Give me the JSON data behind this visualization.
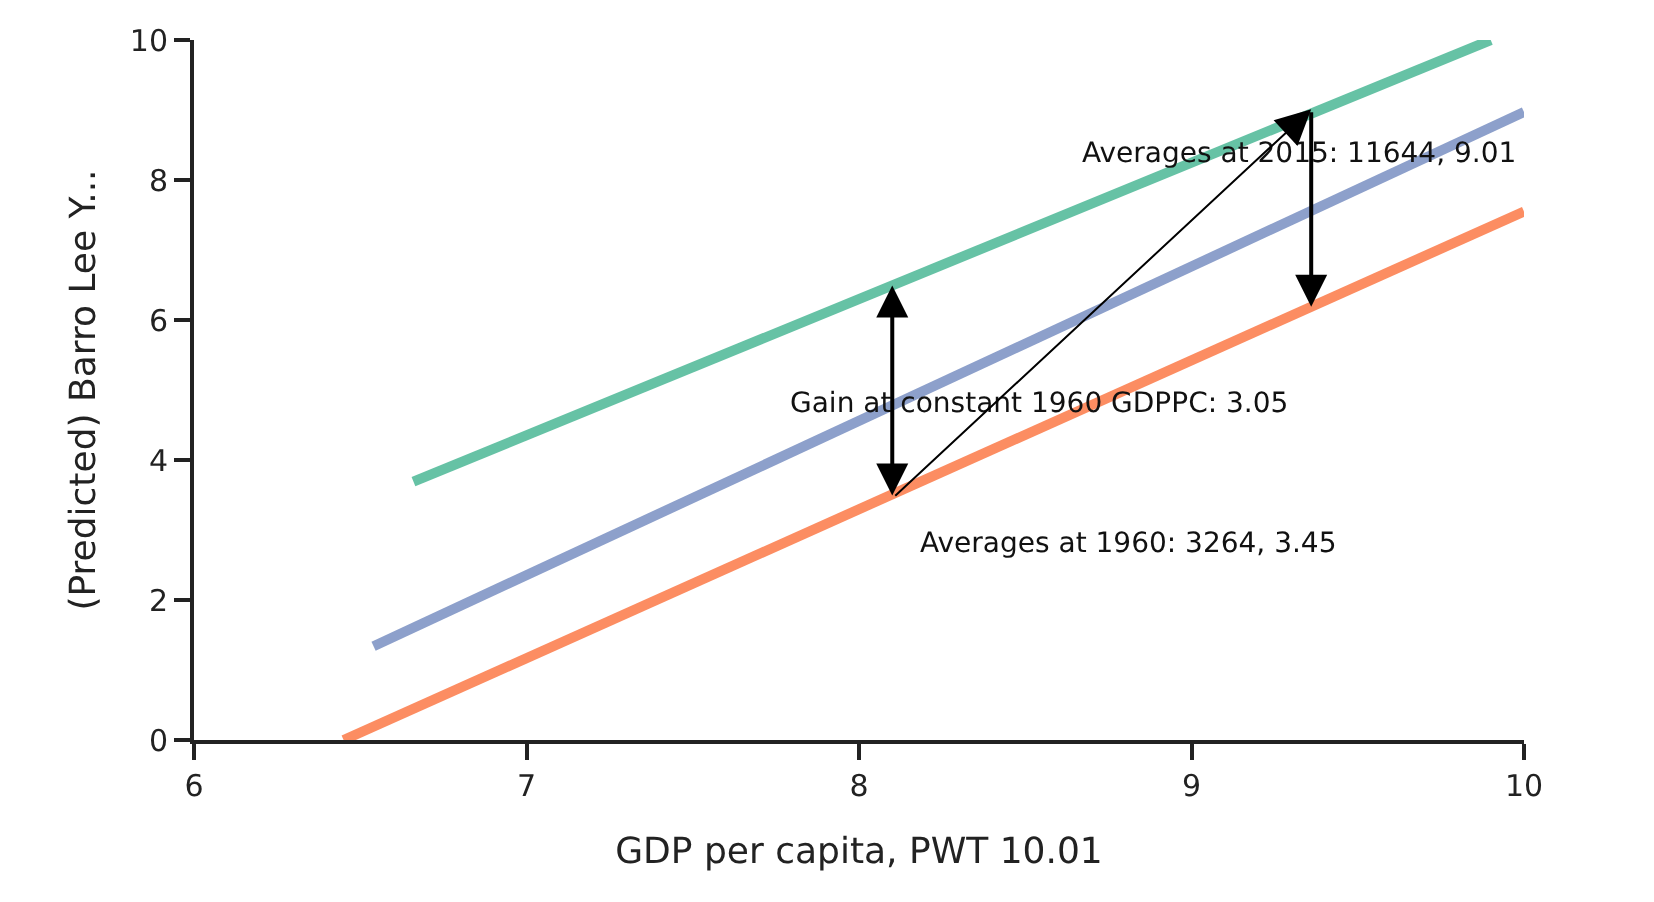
{
  "chart_data": {
    "type": "line",
    "xlabel": "GDP per capita, PWT 10.01",
    "ylabel": "(Predicted) Barro Lee Y...",
    "xlim": [
      6,
      10
    ],
    "xticks": [
      6,
      7,
      8,
      9,
      10
    ],
    "ylim": [
      0,
      10
    ],
    "yticks": [
      0,
      2,
      4,
      6,
      8,
      10
    ],
    "grid": false,
    "marker": "none",
    "line_style": "solid",
    "series": [
      {
        "color": "#fc8d62",
        "x": [
          6.45,
          10
        ],
        "values": [
          0,
          7.55
        ]
      },
      {
        "color": "#8da0cb",
        "x": [
          6.54,
          10
        ],
        "values": [
          1.34,
          8.97
        ]
      },
      {
        "color": "#66c2a5",
        "x": [
          6.66,
          9.9
        ],
        "values": [
          3.69,
          10
        ]
      }
    ],
    "annotations": [
      {
        "text": "Averages at 2015: 11644, 9.01",
        "x": 9.36,
        "y": 9.01
      },
      "Gain at constant 1960 GDPPC: 3.05",
      {
        "text": "Averages at 1960: 3264, 3.45",
        "x": 8.1,
        "y": 3.45
      }
    ]
  }
}
